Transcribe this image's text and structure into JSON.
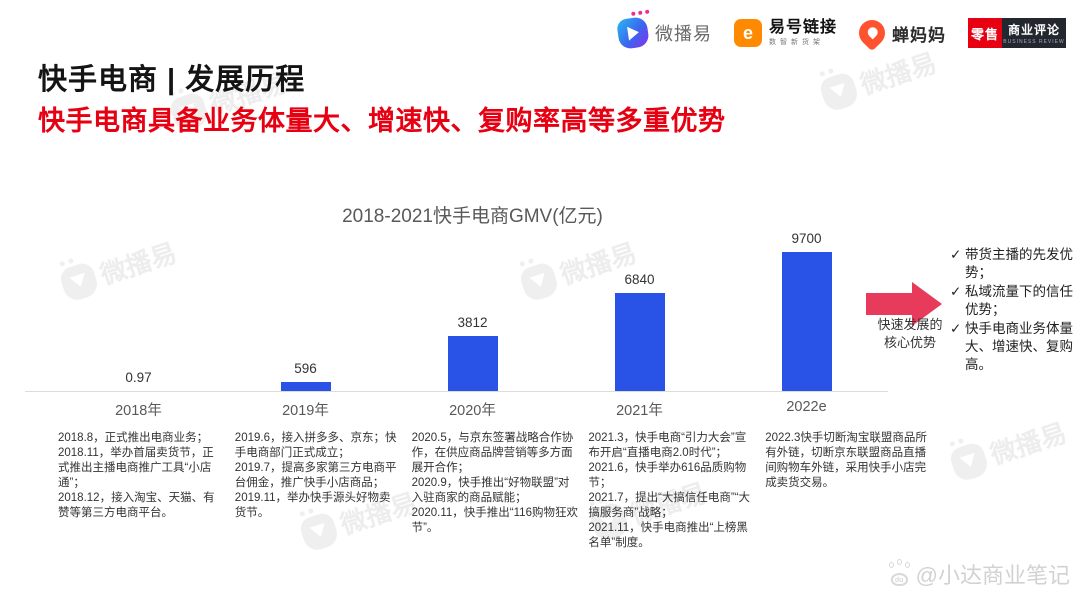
{
  "page": {
    "background": "#ffffff"
  },
  "header": {
    "title": "快手电商 | 发展历程",
    "title_color": "#141414",
    "subtitle": "快手电商具备业务体量大、增速快、复购率高等多重优势",
    "subtitle_color": "#e60012",
    "logos": {
      "weiboyi": {
        "text": "微播易"
      },
      "yihao": {
        "text": "易号链接",
        "icon_glyph": "e",
        "sub": "数智新货架"
      },
      "chanmama": {
        "text": "蝉妈妈"
      },
      "lingshou": {
        "box1": "零售",
        "box2": "商业评论",
        "sub": "BUSINESS REVIEW"
      }
    }
  },
  "chart_data": {
    "type": "bar",
    "title": "2018-2021快手电商GMV(亿元)",
    "categories": [
      "2018年",
      "2019年",
      "2020年",
      "2021年",
      "2022e"
    ],
    "values": [
      0.97,
      596,
      3812,
      6840,
      9700
    ],
    "value_labels": [
      "0.97",
      "596",
      "3812",
      "6840",
      "9700"
    ],
    "bar_color": "#2953e6",
    "ylim": [
      0,
      9700
    ],
    "grid": false,
    "legend": "none",
    "unit": "亿元"
  },
  "annotation": {
    "arrow_color": "#e83a5b",
    "caption": "快速发展的\n核心优势",
    "caption_line1": "快速发展的",
    "caption_line2": "核心优势",
    "check": "✓",
    "bullets": [
      "带货主播的先发优势；",
      "私域流量下的信任优势；",
      "快手电商业务体量大、增速快、复购高。"
    ]
  },
  "timeline": {
    "columns": [
      {
        "entries": [
          "2018.8，正式推出电商业务；",
          "2018.11，举办首届卖货节，正式推出主播电商推广工具“小店通”；",
          "2018.12，接入淘宝、天猫、有赞等第三方电商平台。"
        ]
      },
      {
        "entries": [
          "2019.6，接入拼多多、京东；快手电商部门正式成立；",
          "2019.7，提高多家第三方电商平台佣金，推广快手小店商品；",
          "2019.11，举办快手源头好物卖货节。"
        ]
      },
      {
        "entries": [
          "2020.5，与京东签署战略合作协作，在供应商品牌营销等多方面展开合作；",
          "2020.9，快手推出“好物联盟”对入驻商家的商品赋能；",
          "2020.11，快手推出“116购物狂欢节”。"
        ]
      },
      {
        "entries": [
          "2021.3，快手电商“引力大会”宣布开启“直播电商2.0时代”；",
          "2021.6，快手举办616品质购物节；",
          "2021.7，提出“大搞信任电商”“大搞服务商”战略；",
          "2021.11，快手电商推出“上榜黑名单”制度。"
        ]
      },
      {
        "entries": [
          "2022.3快手切断淘宝联盟商品所有外链，切断京东联盟商品直播间购物车外链，采用快手小店完成卖货交易。"
        ]
      }
    ]
  },
  "footer": {
    "watermark": "@小达商业笔记",
    "paw_label": "du"
  },
  "background": {
    "watermark_text": "微播易"
  }
}
